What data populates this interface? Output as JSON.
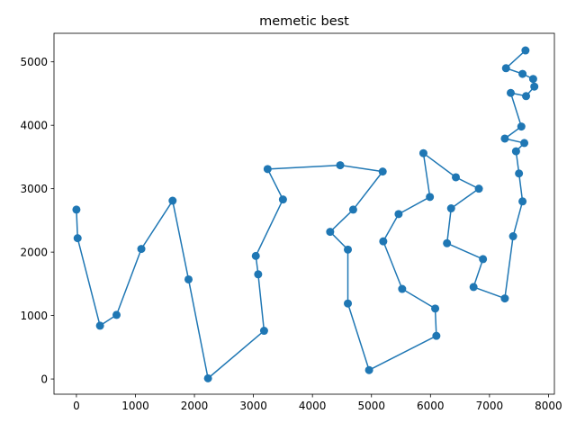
{
  "chart_data": {
    "type": "line",
    "title": "memetic best",
    "xlabel": "",
    "ylabel": "",
    "xlim": [
      -380,
      8100
    ],
    "ylim": [
      -240,
      5450
    ],
    "grid": false,
    "legend": "none",
    "marker": "circle",
    "color": "#1f77b4",
    "x_ticks": [
      0,
      1000,
      2000,
      3000,
      4000,
      5000,
      6000,
      7000,
      8000
    ],
    "y_ticks": [
      0,
      1000,
      2000,
      3000,
      4000,
      5000
    ],
    "series": [
      {
        "name": "",
        "x": [
          0,
          20,
          400,
          680,
          1100,
          1630,
          1900,
          2230,
          3180,
          3080,
          3040,
          3500,
          3240,
          4470,
          5190,
          4690,
          4300,
          4600,
          4600,
          4960,
          6100,
          6080,
          5520,
          5200,
          5460,
          5990,
          5880,
          6430,
          6820,
          6350,
          6280,
          6890,
          6730,
          7260,
          7400,
          7560,
          7500,
          7450,
          7590,
          7260,
          7540,
          7360,
          7620,
          7760,
          7740,
          7560,
          7280,
          7610
        ],
        "y": [
          2670,
          2220,
          840,
          1010,
          2050,
          2810,
          1570,
          10,
          760,
          1650,
          1940,
          2830,
          3310,
          3370,
          3270,
          2670,
          2320,
          2040,
          1190,
          140,
          680,
          1110,
          1420,
          2170,
          2600,
          2870,
          3560,
          3180,
          3000,
          2690,
          2140,
          1890,
          1450,
          1270,
          2250,
          2800,
          3240,
          3590,
          3720,
          3790,
          3980,
          4510,
          4460,
          4610,
          4730,
          4810,
          4900,
          5180
        ]
      }
    ]
  }
}
